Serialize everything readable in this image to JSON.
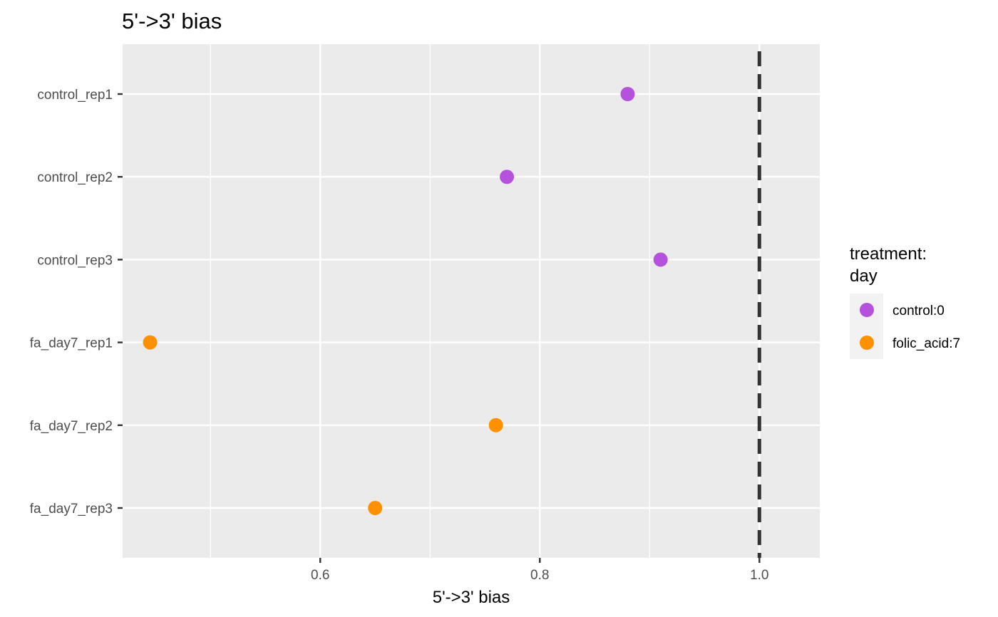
{
  "chart_data": {
    "type": "scatter",
    "title": "5'->3' bias",
    "xlabel": "5'->3' bias",
    "ylabel": "",
    "xlim": [
      0.42,
      1.055
    ],
    "x_major_ticks": [
      0.6,
      0.8,
      1.0
    ],
    "x_tick_labels": [
      "0.6",
      "0.8",
      "1.0"
    ],
    "x_minor_ticks": [
      0.5,
      0.7,
      0.9
    ],
    "categories": [
      "control_rep1",
      "control_rep2",
      "control_rep3",
      "fa_day7_rep1",
      "fa_day7_rep2",
      "fa_day7_rep3"
    ],
    "reference_line": {
      "x": 1.0,
      "style": "dashed",
      "color": "#333333"
    },
    "series": [
      {
        "name": "control:0",
        "color": "#B452DE",
        "categories": [
          "control_rep1",
          "control_rep2",
          "control_rep3"
        ],
        "values": [
          0.88,
          0.77,
          0.91
        ]
      },
      {
        "name": "folic_acid:7",
        "color": "#FF9000",
        "categories": [
          "fa_day7_rep1",
          "fa_day7_rep2",
          "fa_day7_rep3"
        ],
        "values": [
          0.445,
          0.76,
          0.65
        ]
      }
    ],
    "legend": {
      "title_lines": [
        "treatment:",
        "day"
      ],
      "placement": "right"
    },
    "grid": true,
    "panel_background": "#EBEBEB",
    "grid_color": "#FFFFFF"
  }
}
